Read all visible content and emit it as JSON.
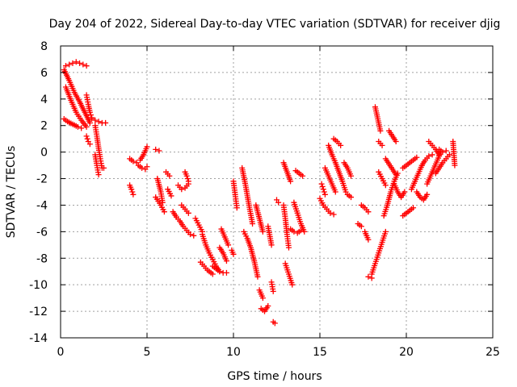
{
  "chart_data": {
    "type": "scatter",
    "title": "Day 204 of 2022, Sidereal Day-to-day VTEC variation (SDTVAR) for receiver djig",
    "xlabel": "GPS time / hours",
    "ylabel": "SDTVAR / TECUs",
    "xlim": [
      0,
      25
    ],
    "ylim": [
      -14,
      8
    ],
    "xticks": [
      0,
      5,
      10,
      15,
      20,
      25
    ],
    "xtick_labels": [
      "0",
      "5",
      "10",
      "15",
      "20",
      "25"
    ],
    "yticks": [
      8,
      6,
      4,
      2,
      0,
      -2,
      -4,
      -6,
      -8,
      -10,
      -12,
      -14
    ],
    "ytick_labels": [
      "8",
      "6",
      "4",
      "2",
      "0",
      "-2",
      "-4",
      "-6",
      "-8",
      "-10",
      "-12",
      "-14"
    ],
    "grid": true,
    "marker": "plus",
    "color": "#ff0000",
    "segments": [
      {
        "x": [
          0.2,
          0.5,
          0.8,
          1.1,
          1.4,
          1.7
        ],
        "y": [
          6.2,
          5.4,
          4.5,
          3.8,
          3.0,
          2.2
        ]
      },
      {
        "x": [
          0.3,
          0.6,
          0.9,
          1.2,
          1.5
        ],
        "y": [
          4.9,
          3.9,
          3.0,
          2.4,
          1.9
        ]
      },
      {
        "x": [
          0.2,
          0.4,
          0.7,
          1.0,
          1.2
        ],
        "y": [
          2.5,
          2.3,
          2.1,
          1.9,
          1.8
        ]
      },
      {
        "x": [
          0.3,
          0.5,
          0.7,
          0.9,
          1.1,
          1.3,
          1.5
        ],
        "y": [
          6.5,
          6.6,
          6.7,
          6.8,
          6.7,
          6.6,
          6.5
        ]
      },
      {
        "x": [
          1.5,
          1.6,
          1.7,
          1.8
        ],
        "y": [
          4.3,
          3.6,
          3.0,
          2.6
        ]
      },
      {
        "x": [
          1.5,
          1.6,
          1.7
        ],
        "y": [
          1.2,
          0.8,
          0.6
        ]
      },
      {
        "x": [
          2.0,
          2.1,
          2.2,
          2.3,
          2.4,
          2.5
        ],
        "y": [
          2.0,
          1.2,
          0.3,
          -0.5,
          -1.2,
          -1.2
        ]
      },
      {
        "x": [
          1.8,
          2.0,
          2.2,
          2.4,
          2.6
        ],
        "y": [
          2.5,
          2.4,
          2.3,
          2.2,
          2.2
        ]
      },
      {
        "x": [
          2.0,
          2.1,
          2.2
        ],
        "y": [
          -0.2,
          -1.0,
          -1.7
        ]
      },
      {
        "x": [
          4.0,
          4.1,
          4.2
        ],
        "y": [
          -2.5,
          -2.8,
          -3.2
        ]
      },
      {
        "x": [
          4.0,
          4.2,
          4.4
        ],
        "y": [
          -0.5,
          -0.7,
          -0.8
        ]
      },
      {
        "x": [
          4.6,
          4.8,
          5.0
        ],
        "y": [
          -0.6,
          -0.2,
          0.4
        ]
      },
      {
        "x": [
          4.5,
          4.7,
          4.9,
          5.0
        ],
        "y": [
          -1.0,
          -1.2,
          -1.3,
          -1.1
        ]
      },
      {
        "x": [
          5.5,
          5.7
        ],
        "y": [
          0.2,
          0.1
        ]
      },
      {
        "x": [
          5.6,
          5.8,
          5.9
        ],
        "y": [
          -2.0,
          -3.0,
          -3.8
        ]
      },
      {
        "x": [
          6.1,
          6.3
        ],
        "y": [
          -1.5,
          -1.8
        ]
      },
      {
        "x": [
          6.2,
          6.4
        ],
        "y": [
          -2.8,
          -3.3
        ]
      },
      {
        "x": [
          5.5,
          5.8,
          6.0
        ],
        "y": [
          -3.4,
          -4.0,
          -4.5
        ]
      },
      {
        "x": [
          6.5,
          6.7,
          6.9,
          7.1,
          7.3,
          7.5,
          7.7
        ],
        "y": [
          -4.5,
          -4.9,
          -5.2,
          -5.6,
          -5.9,
          -6.2,
          -6.3
        ]
      },
      {
        "x": [
          6.8,
          7.0,
          7.2,
          7.4
        ],
        "y": [
          -2.5,
          -2.8,
          -2.7,
          -2.4
        ]
      },
      {
        "x": [
          7.2,
          7.3,
          7.4
        ],
        "y": [
          -1.5,
          -1.8,
          -2.2
        ]
      },
      {
        "x": [
          7.0,
          7.2,
          7.4
        ],
        "y": [
          -4.0,
          -4.3,
          -4.6
        ]
      },
      {
        "x": [
          7.8,
          8.0,
          8.2
        ],
        "y": [
          -5.0,
          -5.5,
          -6.0
        ]
      },
      {
        "x": [
          8.2,
          8.4,
          8.6,
          8.8,
          9.0,
          9.2
        ],
        "y": [
          -6.2,
          -7.0,
          -7.6,
          -8.1,
          -8.6,
          -9.0
        ]
      },
      {
        "x": [
          8.1,
          8.3,
          8.5,
          8.8
        ],
        "y": [
          -8.3,
          -8.6,
          -8.9,
          -9.2
        ]
      },
      {
        "x": [
          8.8,
          9.0,
          9.2,
          9.4,
          9.6
        ],
        "y": [
          -8.6,
          -8.8,
          -9.0,
          -9.1,
          -9.1
        ]
      },
      {
        "x": [
          9.2,
          9.4,
          9.6
        ],
        "y": [
          -7.2,
          -7.6,
          -8.2
        ]
      },
      {
        "x": [
          9.3,
          9.5,
          9.7
        ],
        "y": [
          -5.8,
          -6.4,
          -7.0
        ]
      },
      {
        "x": [
          9.9,
          10.0
        ],
        "y": [
          -7.4,
          -7.7
        ]
      },
      {
        "x": [
          10.0,
          10.1,
          10.2
        ],
        "y": [
          -2.2,
          -3.2,
          -4.2
        ]
      },
      {
        "x": [
          10.5,
          10.7,
          10.9,
          11.1
        ],
        "y": [
          -1.2,
          -2.5,
          -4.0,
          -5.4
        ]
      },
      {
        "x": [
          10.6,
          10.8,
          11.0,
          11.2,
          11.4
        ],
        "y": [
          -6.0,
          -6.5,
          -7.2,
          -8.2,
          -9.4
        ]
      },
      {
        "x": [
          11.3,
          11.5,
          11.7
        ],
        "y": [
          -4.0,
          -5.0,
          -6.0
        ]
      },
      {
        "x": [
          11.5,
          11.7
        ],
        "y": [
          -10.4,
          -11.0
        ]
      },
      {
        "x": [
          11.6,
          11.8,
          12.0
        ],
        "y": [
          -11.8,
          -12.0,
          -11.6
        ]
      },
      {
        "x": [
          12.0,
          12.2
        ],
        "y": [
          -5.6,
          -7.0
        ]
      },
      {
        "x": [
          12.2,
          12.3
        ],
        "y": [
          -9.8,
          -10.5
        ]
      },
      {
        "x": [
          12.3,
          12.4
        ],
        "y": [
          -12.8,
          -12.9
        ]
      },
      {
        "x": [
          12.5,
          12.6
        ],
        "y": [
          -3.6,
          -3.8
        ]
      },
      {
        "x": [
          12.9,
          13.0,
          13.1,
          13.2
        ],
        "y": [
          -4.0,
          -5.0,
          -6.2,
          -7.2
        ]
      },
      {
        "x": [
          13.0,
          13.2,
          13.4
        ],
        "y": [
          -8.4,
          -9.2,
          -10.0
        ]
      },
      {
        "x": [
          12.9,
          13.1,
          13.3
        ],
        "y": [
          -0.8,
          -1.5,
          -2.2
        ]
      },
      {
        "x": [
          13.3,
          13.5,
          13.7,
          13.9
        ],
        "y": [
          -5.8,
          -6.0,
          -6.1,
          -5.9
        ]
      },
      {
        "x": [
          13.5,
          13.7,
          13.9,
          14.1
        ],
        "y": [
          -3.8,
          -4.6,
          -5.4,
          -6.0
        ]
      },
      {
        "x": [
          13.6,
          13.8,
          14.0
        ],
        "y": [
          -1.4,
          -1.6,
          -1.8
        ]
      },
      {
        "x": [
          15.0,
          15.2,
          15.4,
          15.6,
          15.8
        ],
        "y": [
          -3.5,
          -4.0,
          -4.3,
          -4.6,
          -4.7
        ]
      },
      {
        "x": [
          15.1,
          15.2,
          15.3
        ],
        "y": [
          -2.4,
          -2.8,
          -3.2
        ]
      },
      {
        "x": [
          15.3,
          15.5,
          15.7,
          15.9
        ],
        "y": [
          -1.2,
          -1.8,
          -2.4,
          -3.0
        ]
      },
      {
        "x": [
          15.5,
          15.7,
          15.9,
          16.1,
          16.3,
          16.5
        ],
        "y": [
          0.5,
          -0.2,
          -0.8,
          -1.5,
          -2.2,
          -3.0
        ]
      },
      {
        "x": [
          15.8,
          16.0,
          16.2
        ],
        "y": [
          1.0,
          0.8,
          0.5
        ]
      },
      {
        "x": [
          16.4,
          16.6,
          16.8
        ],
        "y": [
          -0.8,
          -1.2,
          -1.8
        ]
      },
      {
        "x": [
          16.6,
          16.8
        ],
        "y": [
          -3.2,
          -3.4
        ]
      },
      {
        "x": [
          17.2,
          17.4
        ],
        "y": [
          -5.4,
          -5.6
        ]
      },
      {
        "x": [
          17.4,
          17.6,
          17.8
        ],
        "y": [
          -4.0,
          -4.2,
          -4.5
        ]
      },
      {
        "x": [
          17.6,
          17.8
        ],
        "y": [
          -6.0,
          -6.6
        ]
      },
      {
        "x": [
          17.8,
          18.0
        ],
        "y": [
          -9.4,
          -9.5
        ]
      },
      {
        "x": [
          18.0,
          18.2,
          18.4,
          18.6,
          18.8
        ],
        "y": [
          -9.2,
          -8.4,
          -7.6,
          -6.8,
          -6.0
        ]
      },
      {
        "x": [
          18.2,
          18.3,
          18.4,
          18.5
        ],
        "y": [
          3.4,
          2.8,
          2.2,
          1.6
        ]
      },
      {
        "x": [
          18.4,
          18.6
        ],
        "y": [
          0.8,
          0.5
        ]
      },
      {
        "x": [
          18.4,
          18.6,
          18.8
        ],
        "y": [
          -1.5,
          -2.0,
          -2.5
        ]
      },
      {
        "x": [
          18.7,
          18.9,
          19.1,
          19.3,
          19.5
        ],
        "y": [
          -4.8,
          -4.0,
          -3.0,
          -2.2,
          -1.6
        ]
      },
      {
        "x": [
          18.8,
          19.0,
          19.2,
          19.4
        ],
        "y": [
          -0.5,
          -0.9,
          -1.3,
          -1.7
        ]
      },
      {
        "x": [
          19.0,
          19.2,
          19.4
        ],
        "y": [
          1.6,
          1.2,
          0.8
        ]
      },
      {
        "x": [
          19.3,
          19.5,
          19.7,
          19.9
        ],
        "y": [
          -2.4,
          -3.0,
          -3.4,
          -3.0
        ]
      },
      {
        "x": [
          19.8,
          20.0,
          20.2,
          20.4
        ],
        "y": [
          -4.8,
          -4.6,
          -4.4,
          -4.2
        ]
      },
      {
        "x": [
          19.8,
          20.0,
          20.2,
          20.4,
          20.6
        ],
        "y": [
          -1.2,
          -1.0,
          -0.8,
          -0.6,
          -0.4
        ]
      },
      {
        "x": [
          20.3,
          20.5,
          20.7,
          20.9
        ],
        "y": [
          -2.8,
          -2.2,
          -1.6,
          -1.0
        ]
      },
      {
        "x": [
          20.6,
          20.8,
          21.0,
          21.2
        ],
        "y": [
          -3.0,
          -3.4,
          -3.6,
          -3.2
        ]
      },
      {
        "x": [
          20.9,
          21.1,
          21.3,
          21.5
        ],
        "y": [
          -1.0,
          -0.6,
          -0.3,
          -0.2
        ]
      },
      {
        "x": [
          21.2,
          21.4,
          21.6,
          21.8,
          22.0
        ],
        "y": [
          -2.4,
          -1.8,
          -1.2,
          -0.6,
          0.0
        ]
      },
      {
        "x": [
          21.3,
          21.5,
          21.7,
          21.9
        ],
        "y": [
          0.8,
          0.5,
          0.2,
          -0.2
        ]
      },
      {
        "x": [
          21.7,
          21.9,
          22.1,
          22.3,
          22.5
        ],
        "y": [
          -1.6,
          -1.2,
          -0.8,
          -0.5,
          -0.2
        ]
      },
      {
        "x": [
          21.9,
          22.1,
          22.3
        ],
        "y": [
          0.2,
          0.0,
          0.1
        ]
      },
      {
        "x": [
          22.7,
          22.8
        ],
        "y": [
          0.8,
          -1.0
        ]
      }
    ]
  }
}
